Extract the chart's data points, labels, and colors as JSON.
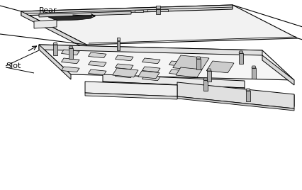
{
  "bg_color": "#ffffff",
  "line_color": "#000000",
  "label_rear": "Rear",
  "label_slot": "Slot",
  "fig_width": 4.27,
  "fig_height": 2.68,
  "dpi": 100
}
